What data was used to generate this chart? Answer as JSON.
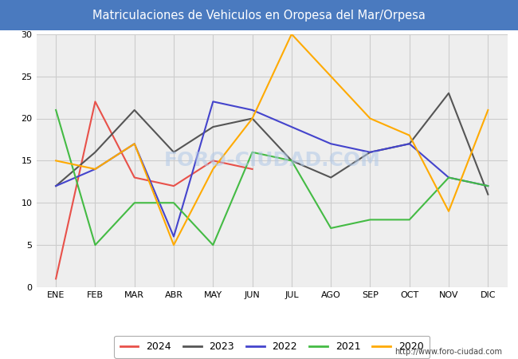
{
  "title": "Matriculaciones de Vehiculos en Oropesa del Mar/Orpesa",
  "title_bg_color": "#4a7abf",
  "title_text_color": "#ffffff",
  "months": [
    "ENE",
    "FEB",
    "MAR",
    "ABR",
    "MAY",
    "JUN",
    "JUL",
    "AGO",
    "SEP",
    "OCT",
    "NOV",
    "DIC"
  ],
  "ylim": [
    0,
    30
  ],
  "yticks": [
    0,
    5,
    10,
    15,
    20,
    25,
    30
  ],
  "series": {
    "2024": {
      "color": "#e8514a",
      "values": [
        1,
        22,
        13,
        12,
        15,
        14,
        null,
        null,
        null,
        null,
        null,
        null
      ]
    },
    "2023": {
      "color": "#555555",
      "values": [
        12,
        16,
        21,
        16,
        19,
        20,
        15,
        13,
        16,
        17,
        23,
        11
      ]
    },
    "2022": {
      "color": "#4444cc",
      "values": [
        12,
        14,
        17,
        6,
        22,
        21,
        19,
        17,
        16,
        17,
        13,
        12
      ]
    },
    "2021": {
      "color": "#44bb44",
      "values": [
        21,
        5,
        10,
        10,
        5,
        16,
        15,
        7,
        8,
        8,
        13,
        12
      ]
    },
    "2020": {
      "color": "#ffaa00",
      "values": [
        15,
        14,
        17,
        5,
        14,
        20,
        30,
        25,
        20,
        18,
        9,
        21
      ]
    }
  },
  "watermark": "FORO-CIUDAD.COM",
  "url": "http://www.foro-ciudad.com",
  "grid_color": "#cccccc",
  "plot_bg_color": "#eeeeee",
  "fig_bg_color": "#ffffff",
  "title_fontsize": 10.5,
  "tick_fontsize": 8
}
